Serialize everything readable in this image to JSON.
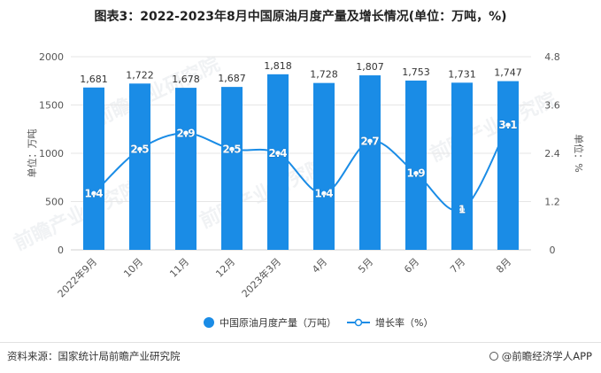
{
  "title": "图表3：2022-2023年8月中国原油月度产量及增长情况(单位：万吨，%)",
  "source": "资料来源：国家统计局前瞻产业研究院",
  "brand": "@前瞻经济学人APP",
  "watermark": "前瞻产业研究院",
  "colors": {
    "bar": "#1a8ce6",
    "line": "#1a8ce6",
    "axis": "#d0d0d0",
    "grid": "#e6e6e6",
    "text": "#555555"
  },
  "chart_data": {
    "type": "bar+line",
    "categories": [
      "2022年9月",
      "10月",
      "11月",
      "12月",
      "2023年3月",
      "4月",
      "5月",
      "6月",
      "7月",
      "8月"
    ],
    "series": [
      {
        "name": "中国原油月度产量（万吨）",
        "type": "bar",
        "axis": "left",
        "values": [
          1681,
          1722,
          1678,
          1687,
          1818,
          1728,
          1807,
          1753,
          1731,
          1747
        ],
        "labels": [
          "1,681",
          "1,722",
          "1,678",
          "1,687",
          "1,818",
          "1,728",
          "1,807",
          "1,753",
          "1,731",
          "1,747"
        ]
      },
      {
        "name": "增长率（%）",
        "type": "line",
        "axis": "right",
        "values": [
          1.4,
          2.5,
          2.9,
          2.5,
          2.4,
          1.4,
          2.7,
          1.9,
          1,
          3.1
        ],
        "labels": [
          "1.4",
          "2.5",
          "2.9",
          "2.5",
          "2.4",
          "1.4",
          "2.7",
          "1.9",
          "1",
          "3.1"
        ]
      }
    ],
    "y_left": {
      "label": "单位：万吨",
      "min": 0,
      "max": 2000,
      "ticks": [
        0,
        500,
        1000,
        1500,
        2000
      ],
      "tick_labels": [
        "0",
        "500",
        "1000",
        "1500",
        "2000"
      ]
    },
    "y_right": {
      "label": "单位：%",
      "min": 0,
      "max": 4.8,
      "ticks": [
        0,
        1.2,
        2.4,
        3.6,
        4.8
      ],
      "tick_labels": [
        "0",
        "1.2",
        "2.4",
        "3.6",
        "4.8"
      ]
    },
    "legend": {
      "position": "bottom",
      "items": [
        "中国原油月度产量（万吨）",
        "增长率（%）"
      ]
    }
  }
}
